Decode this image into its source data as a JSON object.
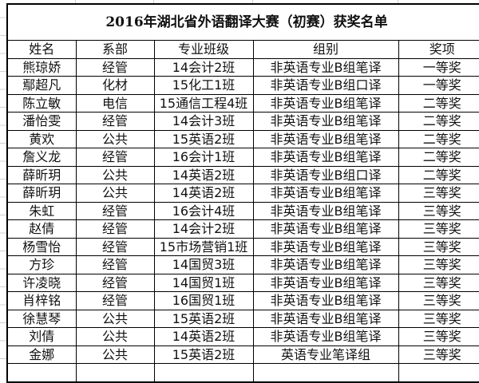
{
  "title": "2016年湖北省外语翻译大赛（初赛）获奖名单",
  "headers": [
    "姓名",
    "系部",
    "专业班级",
    "组别",
    "奖项"
  ],
  "rows": [
    [
      "熊琼娇",
      "经管",
      "14会计2班",
      "非英语专业B组笔译",
      "一等奖"
    ],
    [
      "鄢超凡",
      "化材",
      "15化工1班",
      "非英语专业B组口译",
      "一等奖"
    ],
    [
      "陈立敏",
      "电信",
      "15通信工程4班",
      "非英语专业B组笔译",
      "二等奖"
    ],
    [
      "潘怡雯",
      "经管",
      "14会计3班",
      "非英语专业B组笔译",
      "二等奖"
    ],
    [
      "黄欢",
      "公共",
      "15英语2班",
      "非英语专业B组笔译",
      "二等奖"
    ],
    [
      "詹义龙",
      "经管",
      "16会计1班",
      "非英语专业B组笔译",
      "二等奖"
    ],
    [
      "薛昕玥",
      "公共",
      "14英语2班",
      "非英语专业B组口译",
      "二等奖"
    ],
    [
      "薛昕玥",
      "公共",
      "14英语2班",
      "非英语专业B组笔译",
      "三等奖"
    ],
    [
      "朱虹",
      "经管",
      "16会计4班",
      "非英语专业B组笔译",
      "三等奖"
    ],
    [
      "赵倩",
      "经管",
      "14会计2班",
      "非英语专业B组笔译",
      "三等奖"
    ],
    [
      "杨雪怡",
      "经管",
      "15市场营销1班",
      "非英语专业B组笔译",
      "三等奖"
    ],
    [
      "方珍",
      "经管",
      "14国贸3班",
      "非英语专业B组笔译",
      "三等奖"
    ],
    [
      "许凌晓",
      "经管",
      "14国贸1班",
      "非英语专业B组笔译",
      "三等奖"
    ],
    [
      "肖梓铭",
      "经管",
      "16国贸1班",
      "非英语专业B组笔译",
      "三等奖"
    ],
    [
      "徐慧琴",
      "公共",
      "15英语2班",
      "非英语专业B组笔译",
      "三等奖"
    ],
    [
      "刘倩",
      "公共",
      "14英语2班",
      "非英语专业B组笔译",
      "三等奖"
    ],
    [
      "金娜",
      "公共",
      "15英语2班",
      "英语专业笔译组",
      "三等奖"
    ]
  ]
}
